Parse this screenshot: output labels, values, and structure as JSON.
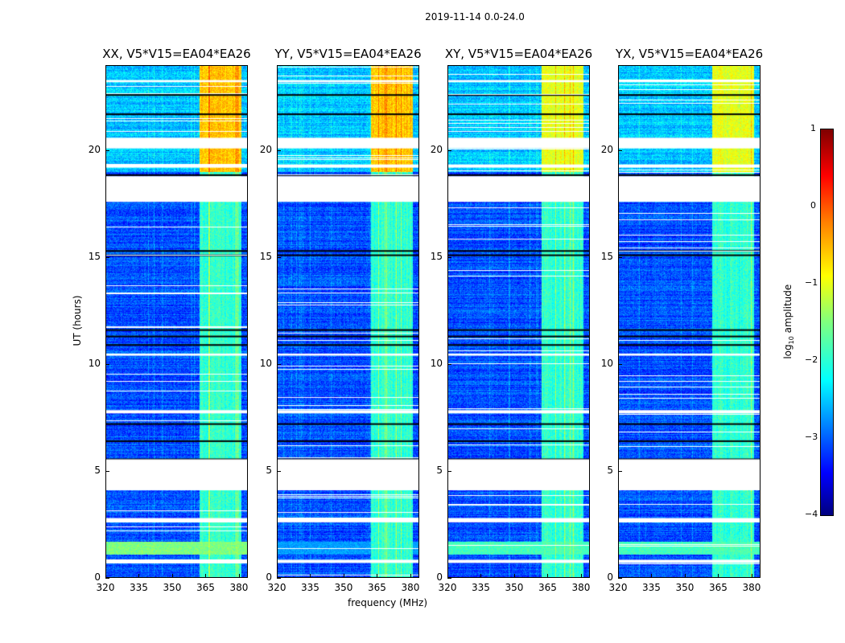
{
  "chart_data": {
    "type": "heatmap",
    "title": "2019-11-14 0.0-24.0",
    "xlabel": "frequency (MHz)",
    "ylabel": "UT (hours)",
    "xlim": [
      320,
      384
    ],
    "ylim": [
      0,
      24
    ],
    "xticks": [
      320,
      335,
      350,
      365,
      380
    ],
    "yticks": [
      0,
      5,
      10,
      15,
      20
    ],
    "panels": [
      {
        "title": "XX, V5*V15=EA04*EA26",
        "low_band_level": -1.5,
        "late_band_level": -0.6
      },
      {
        "title": "YY, V5*V15=EA04*EA26",
        "low_band_level": -2.6,
        "late_band_level": -0.6
      },
      {
        "title": "XY, V5*V15=EA04*EA26",
        "low_band_level": -1.8,
        "late_band_level": -1.0
      },
      {
        "title": "YX, V5*V15=EA04*EA26",
        "low_band_level": -1.8,
        "late_band_level": -1.0
      }
    ],
    "background_level": -3.0,
    "rfi_band_mhz": [
      362,
      381
    ],
    "rfi_band_level": -1.9,
    "bright_time_interval": [
      1.1,
      1.7
    ],
    "flagged_intervals_hours": [
      [
        0.7,
        0.85
      ],
      [
        2.6,
        2.8
      ],
      [
        4.1,
        5.55
      ],
      [
        7.7,
        7.85
      ],
      [
        10.4,
        10.5
      ],
      [
        17.6,
        18.8
      ],
      [
        19.2,
        19.35
      ],
      [
        20.1,
        20.6
      ],
      [
        23.2,
        23.3
      ]
    ],
    "black_lines_hours": [
      5.55,
      6.4,
      7.2,
      10.9,
      11.3,
      11.6,
      15.1,
      15.3,
      18.85,
      21.7,
      22.6
    ],
    "colorbar": {
      "label": "log10 amplitude",
      "label_base": "log",
      "label_sub": "10",
      "label_rest": " amplitude",
      "range": [
        -4,
        1
      ],
      "ticks": [
        "1",
        "0",
        "−1",
        "−2",
        "−3",
        "−4"
      ],
      "colormap": "jet"
    }
  }
}
